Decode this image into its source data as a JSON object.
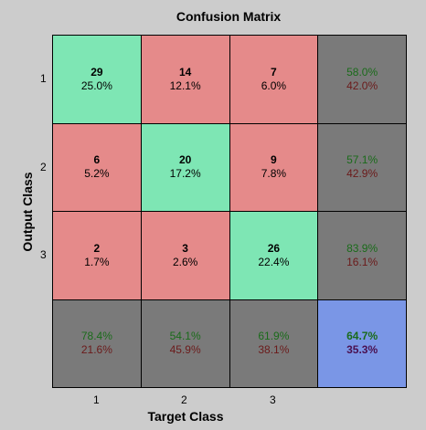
{
  "chart_data": {
    "type": "heatmap",
    "title": "Confusion Matrix",
    "xlabel": "Target Class",
    "ylabel": "Output Class",
    "x_ticks": [
      "1",
      "2",
      "3"
    ],
    "y_ticks": [
      "1",
      "2",
      "3"
    ],
    "colors": {
      "correct": "#7ee6b4",
      "incorrect": "#e58a8a",
      "summary": "#7a7a7a",
      "total": "#7a96e6",
      "correct_text": "#1a6b1a",
      "incorrect_text": "#6b1a1a"
    },
    "matrix": [
      [
        {
          "count": "29",
          "percent": "25.0%"
        },
        {
          "count": "14",
          "percent": "12.1%"
        },
        {
          "count": "7",
          "percent": "6.0%"
        }
      ],
      [
        {
          "count": "6",
          "percent": "5.2%"
        },
        {
          "count": "20",
          "percent": "17.2%"
        },
        {
          "count": "9",
          "percent": "7.8%"
        }
      ],
      [
        {
          "count": "2",
          "percent": "1.7%"
        },
        {
          "count": "3",
          "percent": "2.6%"
        },
        {
          "count": "26",
          "percent": "22.4%"
        }
      ]
    ],
    "row_summary": [
      {
        "correct": "58.0%",
        "incorrect": "42.0%"
      },
      {
        "correct": "57.1%",
        "incorrect": "42.9%"
      },
      {
        "correct": "83.9%",
        "incorrect": "16.1%"
      }
    ],
    "column_summary": [
      {
        "correct": "78.4%",
        "incorrect": "21.6%"
      },
      {
        "correct": "54.1%",
        "incorrect": "45.9%"
      },
      {
        "correct": "61.9%",
        "incorrect": "38.1%"
      }
    ],
    "overall": {
      "correct": "64.7%",
      "incorrect": "35.3%"
    }
  }
}
